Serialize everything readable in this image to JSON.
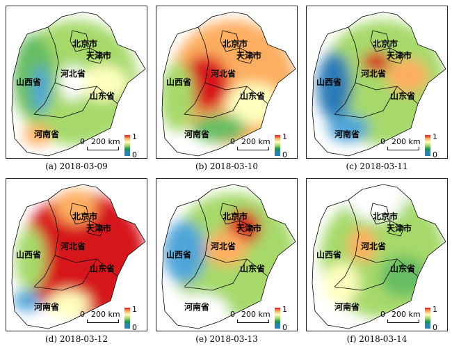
{
  "panels": [
    {
      "caption": "(a) 2018-03-09",
      "scheme": "a"
    },
    {
      "caption": "(b) 2018-03-10",
      "scheme": "b"
    },
    {
      "caption": "(c) 2018-03-11",
      "scheme": "c"
    },
    {
      "caption": "(d) 2018-03-12",
      "scheme": "d"
    },
    {
      "caption": "(e) 2018-03-13",
      "scheme": "e"
    },
    {
      "caption": "(f) 2018-03-14",
      "scheme": "f"
    }
  ],
  "labels": {
    "beijing": "北京市",
    "tianjin": "天津市",
    "hebei": "河北省",
    "shanxi": "山西省",
    "shandong": "山东省",
    "henan": "河南省"
  },
  "scale": {
    "zero": "0",
    "distance": "200 km"
  },
  "colorbar": {
    "max": "1",
    "min": "0"
  },
  "colors": {
    "high": "#d7191c",
    "mid": "#ffffbf",
    "low": "#2c7bb6",
    "green": "#a6d96a"
  }
}
